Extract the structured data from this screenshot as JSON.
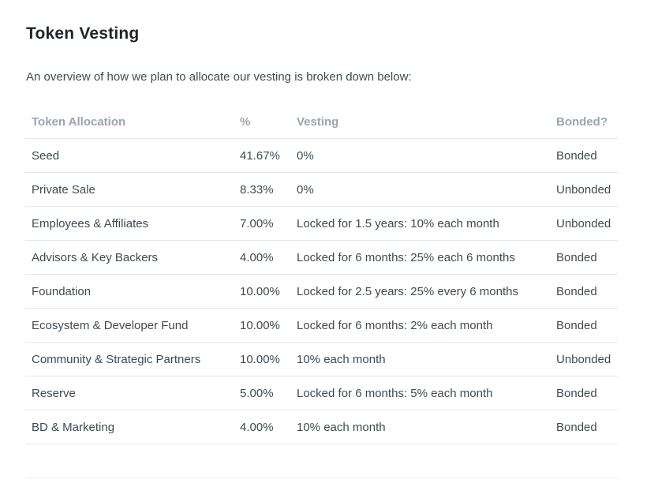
{
  "page": {
    "title": "Token Vesting",
    "intro": "An overview of how we plan to allocate our vesting is broken down below:"
  },
  "table": {
    "columns": [
      "Token Allocation",
      "%",
      "Vesting",
      "Bonded?"
    ],
    "rows": [
      {
        "allocation": "Seed",
        "percent": "41.67%",
        "vesting": "0%",
        "bonded": "Bonded"
      },
      {
        "allocation": "Private Sale",
        "percent": "8.33%",
        "vesting": "0%",
        "bonded": "Unbonded"
      },
      {
        "allocation": "Employees & Affiliates",
        "percent": "7.00%",
        "vesting": "Locked for 1.5 years: 10% each month",
        "bonded": "Unbonded"
      },
      {
        "allocation": "Advisors & Key Backers",
        "percent": "4.00%",
        "vesting": "Locked for 6 months: 25% each 6 months",
        "bonded": "Bonded"
      },
      {
        "allocation": "Foundation",
        "percent": "10.00%",
        "vesting": "Locked for 2.5 years: 25% every 6 months",
        "bonded": "Bonded"
      },
      {
        "allocation": "Ecosystem & Developer Fund",
        "percent": "10.00%",
        "vesting": "Locked for 6 months: 2% each month",
        "bonded": "Bonded"
      },
      {
        "allocation": "Community & Strategic Partners",
        "percent": "10.00%",
        "vesting": "10% each month",
        "bonded": "Unbonded"
      },
      {
        "allocation": "Reserve",
        "percent": "5.00%",
        "vesting": "Locked for 6 months: 5% each month",
        "bonded": "Bonded"
      },
      {
        "allocation": "BD & Marketing",
        "percent": "4.00%",
        "vesting": "10% each month",
        "bonded": "Bonded"
      }
    ]
  },
  "colors": {
    "title_text": "#1d242d",
    "body_text": "#414b55",
    "header_text": "#9aa5b1",
    "row_border": "#e4e8eb",
    "background": "#ffffff"
  }
}
